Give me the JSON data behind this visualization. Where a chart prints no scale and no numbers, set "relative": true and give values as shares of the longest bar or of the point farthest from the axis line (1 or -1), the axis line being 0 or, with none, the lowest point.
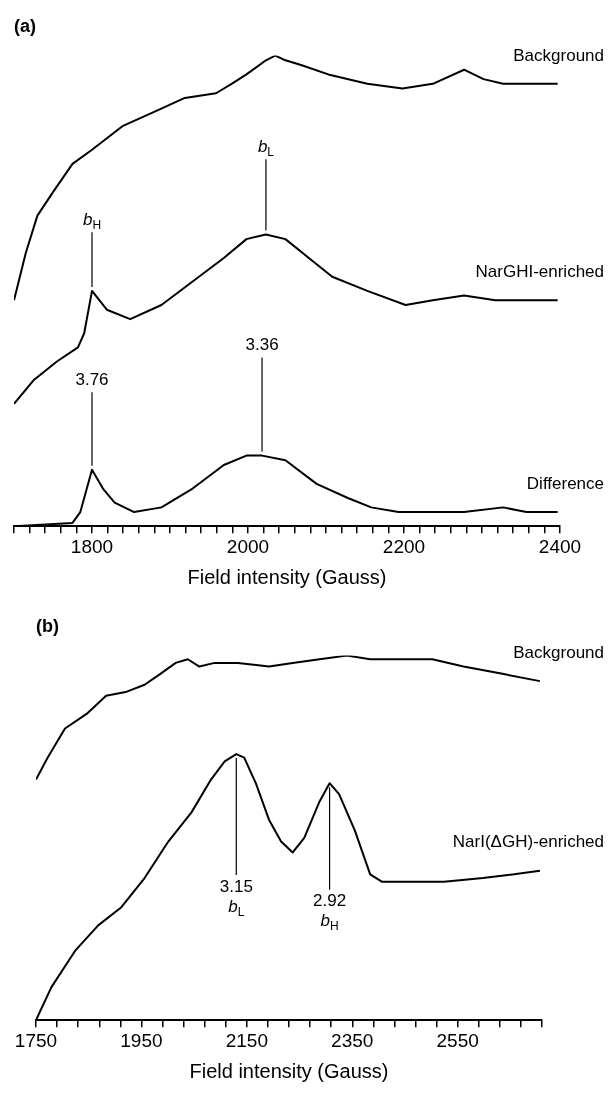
{
  "chart_data": [
    {
      "type": "line",
      "title": "(a)",
      "xlabel": "Field intensity (Gauss)",
      "relative": true,
      "legend": false,
      "xlim": [
        1700,
        2400
      ],
      "xticks": [
        {
          "value": 1700,
          "label": null
        },
        {
          "value": 1720,
          "label": null
        },
        {
          "value": 1740,
          "label": null
        },
        {
          "value": 1760,
          "label": null
        },
        {
          "value": 1780,
          "label": null
        },
        1800,
        {
          "value": 1820,
          "label": null
        },
        {
          "value": 1840,
          "label": null
        },
        {
          "value": 1860,
          "label": null
        },
        {
          "value": 1880,
          "label": null
        },
        {
          "value": 1900,
          "label": null
        },
        {
          "value": 1920,
          "label": null
        },
        {
          "value": 1940,
          "label": null
        },
        {
          "value": 1960,
          "label": null
        },
        {
          "value": 1980,
          "label": null
        },
        2000,
        {
          "value": 2020,
          "label": null
        },
        {
          "value": 2040,
          "label": null
        },
        {
          "value": 2060,
          "label": null
        },
        {
          "value": 2080,
          "label": null
        },
        {
          "value": 2100,
          "label": null
        },
        {
          "value": 2120,
          "label": null
        },
        {
          "value": 2140,
          "label": null
        },
        {
          "value": 2160,
          "label": null
        },
        {
          "value": 2180,
          "label": null
        },
        2200,
        {
          "value": 2220,
          "label": null
        },
        {
          "value": 2240,
          "label": null
        },
        {
          "value": 2260,
          "label": null
        },
        {
          "value": 2280,
          "label": null
        },
        {
          "value": 2300,
          "label": null
        },
        {
          "value": 2320,
          "label": null
        },
        {
          "value": 2340,
          "label": null
        },
        {
          "value": 2360,
          "label": null
        },
        {
          "value": 2380,
          "label": null
        },
        2400
      ],
      "series": [
        {
          "name": "Background",
          "color": "#000000",
          "x": [
            1700,
            1715,
            1730,
            1750,
            1775,
            1800,
            1839,
            1879,
            1919,
            1959,
            1979,
            1998,
            2023,
            2035,
            2048,
            2068,
            2103,
            2153,
            2198,
            2237,
            2277,
            2302,
            2327,
            2367,
            2397
          ],
          "values": [
            0.48,
            0.58,
            0.66,
            0.71,
            0.77,
            0.8,
            0.85,
            0.88,
            0.91,
            0.92,
            0.94,
            0.96,
            0.99,
            1,
            0.99,
            0.98,
            0.96,
            0.94,
            0.93,
            0.94,
            0.97,
            0.95,
            0.94,
            0.94,
            0.94
          ]
        },
        {
          "name": "NarGHI-enriched",
          "color": "#000000",
          "x": [
            1700,
            1725,
            1755,
            1782,
            1790,
            1800,
            1819,
            1849,
            1889,
            1929,
            1969,
            1998,
            2023,
            2048,
            2078,
            2108,
            2153,
            2202,
            2237,
            2277,
            2317,
            2352,
            2397
          ],
          "values": [
            0.26,
            0.31,
            0.35,
            0.38,
            0.41,
            0.5,
            0.46,
            0.44,
            0.47,
            0.52,
            0.57,
            0.61,
            0.62,
            0.61,
            0.57,
            0.53,
            0.5,
            0.47,
            0.48,
            0.49,
            0.48,
            0.48,
            0.48
          ]
        },
        {
          "name": "Difference",
          "color": "#000000",
          "x": [
            1700,
            1775,
            1785,
            1800,
            1814,
            1829,
            1854,
            1889,
            1929,
            1969,
            1998,
            2018,
            2048,
            2088,
            2128,
            2158,
            2193,
            2227,
            2277,
            2327,
            2357,
            2397
          ],
          "values": [
            0,
            0.007,
            0.03,
            0.12,
            0.08,
            0.05,
            0.03,
            0.04,
            0.08,
            0.13,
            0.15,
            0.15,
            0.14,
            0.09,
            0.06,
            0.04,
            0.03,
            0.03,
            0.03,
            0.04,
            0.03,
            0.03
          ]
        }
      ],
      "annotations": [
        {
          "text": "b$_{H}$",
          "x": 1800,
          "y": 0.5
        },
        {
          "text": "b$_{L}$",
          "x": 2023,
          "y": 0.62
        },
        {
          "text": "3.76",
          "x": 1800,
          "y": 0.12
        },
        {
          "text": "3.36",
          "x": 2018,
          "y": 0.15
        }
      ]
    },
    {
      "type": "line",
      "title": "(b)",
      "xlabel": "Field intensity (Gauss)",
      "relative": true,
      "legend": false,
      "xlim": [
        1750,
        2710
      ],
      "xticks": [
        1750,
        {
          "value": 1790,
          "label": null
        },
        {
          "value": 1830,
          "label": null
        },
        {
          "value": 1870,
          "label": null
        },
        {
          "value": 1910,
          "label": null
        },
        1950,
        {
          "value": 1990,
          "label": null
        },
        {
          "value": 2030,
          "label": null
        },
        {
          "value": 2070,
          "label": null
        },
        {
          "value": 2110,
          "label": null
        },
        2150,
        {
          "value": 2190,
          "label": null
        },
        {
          "value": 2230,
          "label": null
        },
        {
          "value": 2270,
          "label": null
        },
        {
          "value": 2310,
          "label": null
        },
        2350,
        {
          "value": 2390,
          "label": null
        },
        {
          "value": 2430,
          "label": null
        },
        {
          "value": 2470,
          "label": null
        },
        {
          "value": 2510,
          "label": null
        },
        2550,
        {
          "value": 2590,
          "label": null
        },
        {
          "value": 2630,
          "label": null
        },
        {
          "value": 2670,
          "label": null
        },
        {
          "value": 2710,
          "label": null
        }
      ],
      "series": [
        {
          "name": "Background",
          "color": "#000000",
          "x": [
            1750,
            1772,
            1805,
            1846,
            1883,
            1920,
            1956,
            1986,
            2015,
            2038,
            2060,
            2089,
            2133,
            2192,
            2237,
            2288,
            2340,
            2384,
            2451,
            2502,
            2561,
            2635,
            2706
          ],
          "values": [
            0.66,
            0.72,
            0.8,
            0.84,
            0.89,
            0.9,
            0.92,
            0.95,
            0.98,
            0.99,
            0.97,
            0.98,
            0.98,
            0.97,
            0.98,
            0.99,
            1,
            0.99,
            0.99,
            0.99,
            0.97,
            0.95,
            0.93
          ]
        },
        {
          "name": "NarI(ΔGH)-enriched",
          "color": "#000000",
          "x": [
            1750,
            1779,
            1824,
            1868,
            1912,
            1956,
            2001,
            2045,
            2082,
            2108,
            2130,
            2145,
            2167,
            2192,
            2215,
            2237,
            2259,
            2288,
            2307,
            2325,
            2355,
            2384,
            2406,
            2451,
            2524,
            2598,
            2657,
            2706
          ],
          "values": [
            0,
            0.09,
            0.19,
            0.26,
            0.31,
            0.39,
            0.49,
            0.57,
            0.66,
            0.71,
            0.73,
            0.72,
            0.65,
            0.55,
            0.49,
            0.46,
            0.5,
            0.6,
            0.65,
            0.62,
            0.52,
            0.4,
            0.38,
            0.38,
            0.38,
            0.39,
            0.4,
            0.41
          ]
        }
      ],
      "annotations": [
        {
          "text": "3.15",
          "x": 2130,
          "y": 0.73
        },
        {
          "text": "b$_{L}$",
          "x": 2130,
          "y": 0.73
        },
        {
          "text": "2.92",
          "x": 2307,
          "y": 0.65
        },
        {
          "text": "b$_{H}$",
          "x": 2307,
          "y": 0.65
        }
      ]
    }
  ]
}
